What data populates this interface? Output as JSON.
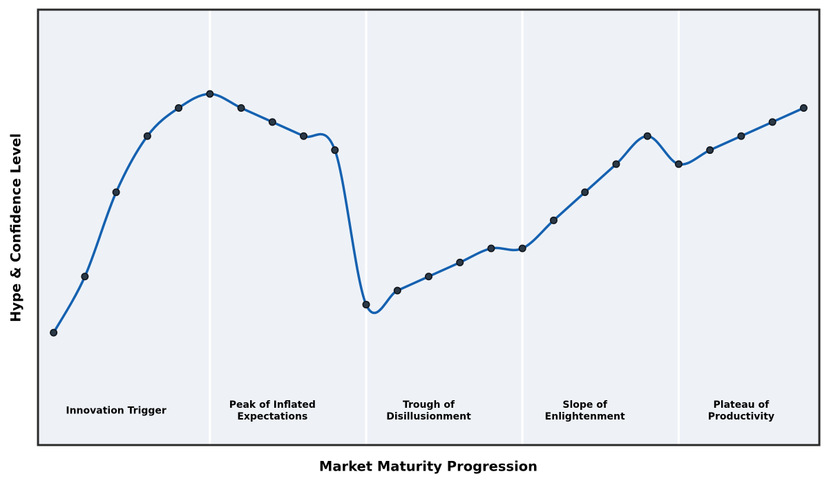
{
  "chart_data": {
    "type": "line",
    "title": "",
    "xlabel": "Market Maturity Progression",
    "ylabel": "Hype & Confidence Level",
    "x": [
      1,
      2,
      3,
      4,
      5,
      6,
      7,
      8,
      9,
      10,
      11,
      12,
      13,
      14,
      15,
      16,
      17,
      18,
      19,
      20,
      21,
      22,
      23,
      24,
      25
    ],
    "y": [
      10,
      30,
      60,
      80,
      90,
      95,
      90,
      85,
      80,
      75,
      20,
      25,
      30,
      35,
      40,
      40,
      50,
      60,
      70,
      80,
      70,
      75,
      80,
      85,
      90
    ],
    "xlim": [
      0.5,
      25.5
    ],
    "ylim": [
      -30,
      125
    ],
    "grid": false,
    "legend": false,
    "smoothing": "cubic-spline",
    "marker": "circle",
    "phase_boundaries_x": [
      6,
      11,
      16,
      21
    ],
    "phase_label_y_value": -18,
    "phases": [
      {
        "label": "Innovation Trigger",
        "center_x": 3
      },
      {
        "label": "Peak of Inflated\nExpectations",
        "center_x": 8
      },
      {
        "label": "Trough of\nDisillusionment",
        "center_x": 13
      },
      {
        "label": "Slope of\nEnlightenment",
        "center_x": 18
      },
      {
        "label": "Plateau of\nProductivity",
        "center_x": 23
      }
    ],
    "colors": {
      "line": "#1561b0",
      "marker_fill": "#2b3947",
      "marker_edge": "#10151c",
      "plot_background": "#eef2f7",
      "plot_border": "#2b2b2b",
      "phase_divider": "#ffffff",
      "text": "#000000",
      "figure_background": "#ffffff"
    }
  }
}
